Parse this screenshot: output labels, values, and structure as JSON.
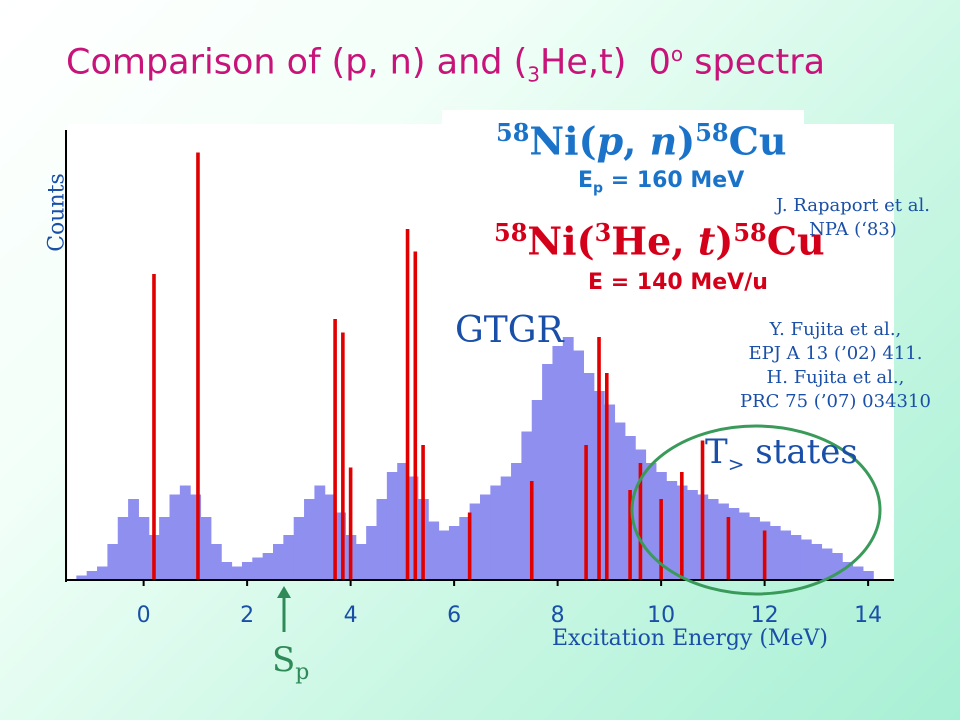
{
  "title": {
    "prefix": "Comparison of (p, n) and (",
    "mass": "3",
    "middle": "He,t)",
    "angle": "0",
    "deg": "o",
    "suffix": "spectra"
  },
  "reactions": {
    "pn": {
      "m1": "58",
      "body": "Ni(",
      "p": "p",
      "comma": ", ",
      "n": "n",
      "close": ")",
      "m2": "58",
      "tail": "Cu"
    },
    "pn_energy": {
      "pre": "E",
      "sub": "p",
      "post": " = 160 MeV"
    },
    "hdt": {
      "m1": "58",
      "body": "Ni(",
      "m3": "3",
      "he": "He, ",
      "t": "t",
      "close": ")",
      "m2": "58",
      "tail": "Cu"
    },
    "hdt_energy": "E = 140 MeV/u"
  },
  "references": {
    "ref1": [
      "J. Rapaport et al.",
      "NPA (‘83)"
    ],
    "ref2": [
      "Y. Fujita et al.,",
      "EPJ A 13 (’02) 411.",
      "H. Fujita et al.,",
      "PRC 75 (’07) 034310"
    ]
  },
  "annotations": {
    "gtgr": "GTGR",
    "t_states_T": "T",
    "t_states_sub": ">",
    "t_states_text": " states",
    "sp_S": "S",
    "sp_sub": "p"
  },
  "colors": {
    "title": "#c8147a",
    "pn_series": "#8f8ff0",
    "hdt_series": "#e00000",
    "ellipse": "#3a9a5a",
    "arrow": "#2e8b57",
    "text_blue": "#1a4fa8"
  },
  "chart_data": {
    "type": "bar",
    "xlabel": "Excitation Energy (MeV)",
    "ylabel": "Counts",
    "xlim": [
      -1.5,
      14.5
    ],
    "ylim": [
      0,
      100
    ],
    "xticks": [
      0,
      2,
      4,
      6,
      8,
      10,
      12,
      14
    ],
    "sp_energy": 2.8,
    "series": [
      {
        "name": "58Ni(p, n)58Cu",
        "style": "histogram",
        "x": [
          -1.4,
          -1.2,
          -1.0,
          -0.8,
          -0.6,
          -0.4,
          -0.2,
          0.0,
          0.2,
          0.4,
          0.6,
          0.8,
          1.0,
          1.2,
          1.4,
          1.6,
          1.8,
          2.0,
          2.2,
          2.4,
          2.6,
          2.8,
          3.0,
          3.2,
          3.4,
          3.6,
          3.8,
          4.0,
          4.2,
          4.4,
          4.6,
          4.8,
          5.0,
          5.2,
          5.4,
          5.6,
          5.8,
          6.0,
          6.2,
          6.4,
          6.6,
          6.8,
          7.0,
          7.2,
          7.4,
          7.6,
          7.8,
          8.0,
          8.2,
          8.4,
          8.6,
          8.8,
          9.0,
          9.2,
          9.4,
          9.6,
          9.8,
          10.0,
          10.2,
          10.4,
          10.6,
          10.8,
          11.0,
          11.2,
          11.4,
          11.6,
          11.8,
          12.0,
          12.2,
          12.4,
          12.6,
          12.8,
          13.0,
          13.2,
          13.4,
          13.6,
          13.8,
          14.0
        ],
        "values": [
          0,
          1,
          2,
          3,
          8,
          14,
          18,
          14,
          10,
          14,
          19,
          21,
          19,
          14,
          8,
          4,
          3,
          4,
          5,
          6,
          8,
          10,
          14,
          18,
          21,
          19,
          15,
          10,
          8,
          12,
          18,
          24,
          26,
          23,
          18,
          13,
          11,
          12,
          14,
          17,
          19,
          21,
          23,
          26,
          33,
          40,
          48,
          52,
          54,
          51,
          46,
          42,
          39,
          35,
          32,
          29,
          26,
          24,
          22,
          21,
          20,
          19,
          18,
          17,
          16,
          15,
          14,
          13,
          12,
          11,
          10,
          9,
          8,
          7,
          6,
          4,
          3,
          2
        ]
      },
      {
        "name": "58Ni(3He, t)58Cu",
        "style": "lines",
        "peaks": [
          {
            "x": 0.2,
            "y": 68
          },
          {
            "x": 1.05,
            "y": 95
          },
          {
            "x": 3.7,
            "y": 58
          },
          {
            "x": 3.85,
            "y": 55
          },
          {
            "x": 4.0,
            "y": 25
          },
          {
            "x": 5.1,
            "y": 78
          },
          {
            "x": 5.25,
            "y": 73
          },
          {
            "x": 5.4,
            "y": 30
          },
          {
            "x": 6.3,
            "y": 15
          },
          {
            "x": 7.5,
            "y": 22
          },
          {
            "x": 8.55,
            "y": 30
          },
          {
            "x": 8.8,
            "y": 54
          },
          {
            "x": 8.95,
            "y": 46
          },
          {
            "x": 9.4,
            "y": 20
          },
          {
            "x": 9.6,
            "y": 26
          },
          {
            "x": 10.0,
            "y": 18
          },
          {
            "x": 10.4,
            "y": 24
          },
          {
            "x": 10.8,
            "y": 31
          },
          {
            "x": 11.3,
            "y": 14
          },
          {
            "x": 12.0,
            "y": 11
          }
        ]
      }
    ]
  }
}
